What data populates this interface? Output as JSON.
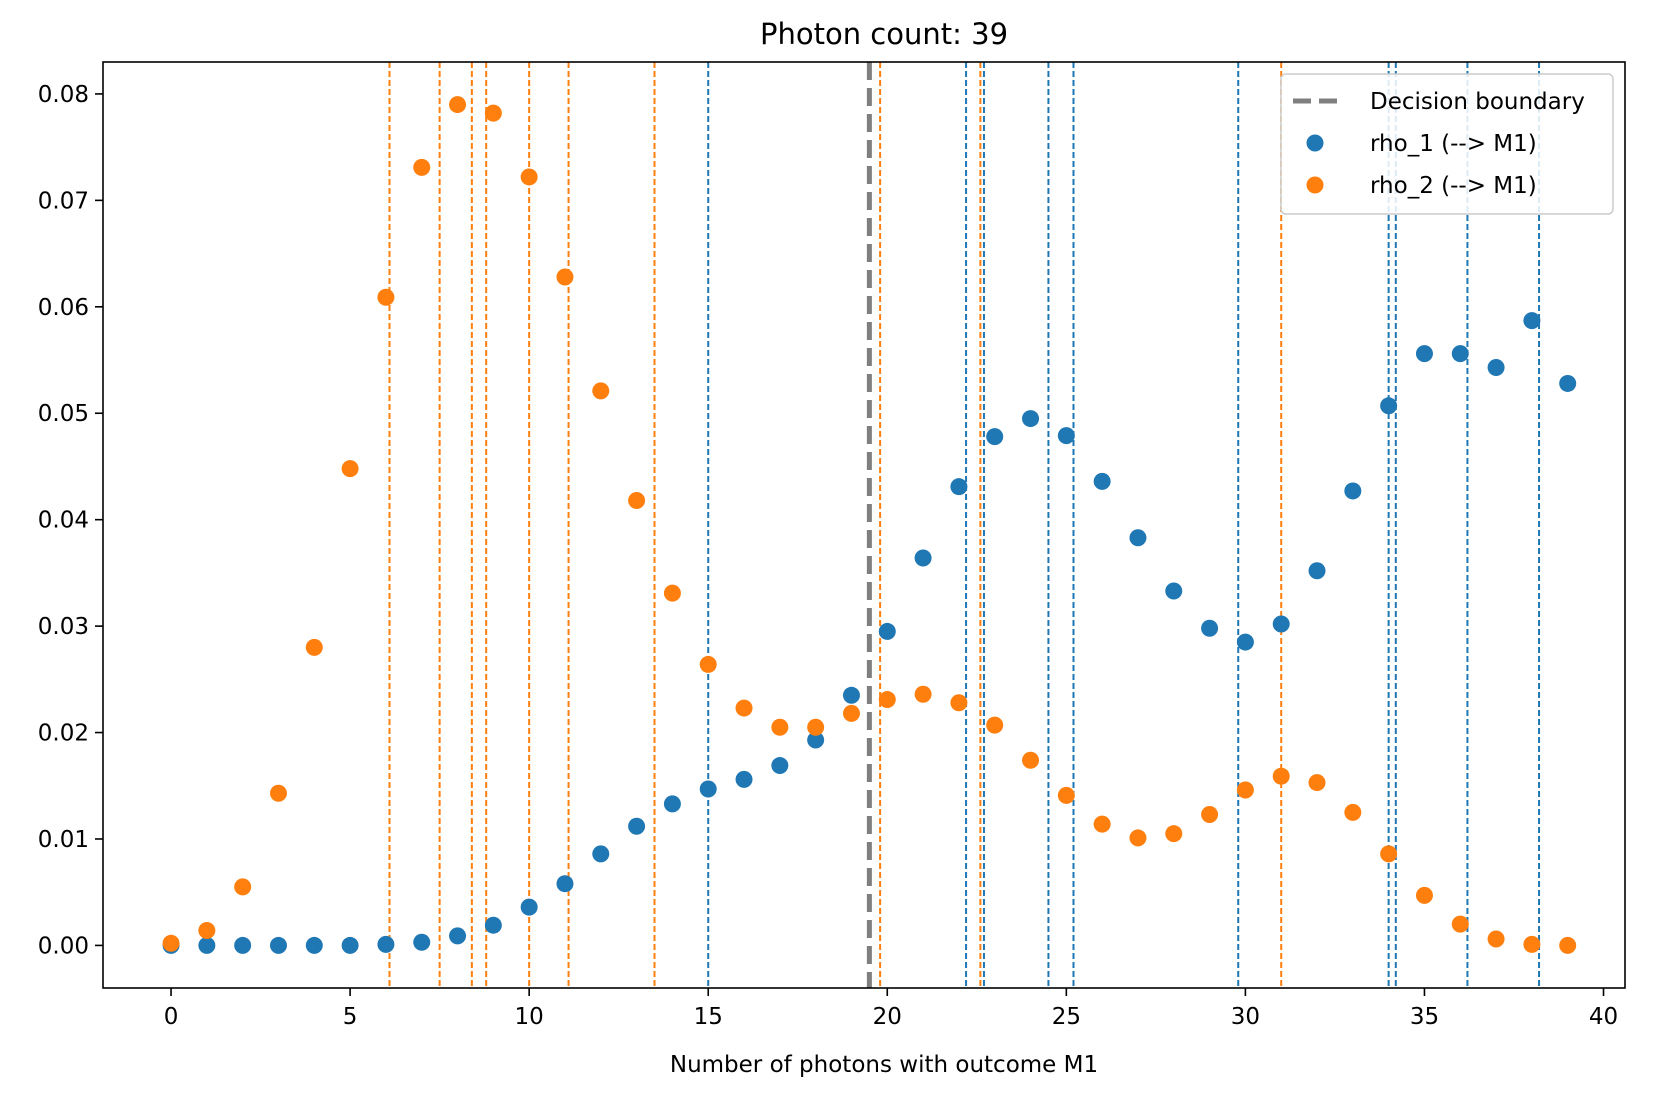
{
  "chart_data": {
    "type": "scatter",
    "title": "Photon count: 39",
    "xlabel": "Number of photons with outcome M1",
    "ylabel": "",
    "xlim": [
      -1.9,
      40.6
    ],
    "ylim": [
      -0.004,
      0.083
    ],
    "xticks": [
      0,
      5,
      10,
      15,
      20,
      25,
      30,
      35,
      40
    ],
    "yticks": [
      0.0,
      0.01,
      0.02,
      0.03,
      0.04,
      0.05,
      0.06,
      0.07,
      0.08
    ],
    "xtick_labels": [
      "0",
      "5",
      "10",
      "15",
      "20",
      "25",
      "30",
      "35",
      "40"
    ],
    "ytick_labels": [
      "0.00",
      "0.01",
      "0.02",
      "0.03",
      "0.04",
      "0.05",
      "0.06",
      "0.07",
      "0.08"
    ],
    "grid": false,
    "legend_position": "top-right",
    "decision_boundary": {
      "name": "Decision boundary",
      "x": 19.5,
      "color": "#7f7f7f"
    },
    "series": [
      {
        "name": "rho_1 (--> M1)",
        "color": "#1f77b4",
        "x": [
          0,
          1,
          2,
          3,
          4,
          5,
          6,
          7,
          8,
          9,
          10,
          11,
          12,
          13,
          14,
          15,
          16,
          17,
          18,
          19,
          20,
          21,
          22,
          23,
          24,
          25,
          26,
          27,
          28,
          29,
          30,
          31,
          32,
          33,
          34,
          35,
          36,
          37,
          38,
          39
        ],
        "values": [
          0.0,
          0.0,
          0.0,
          0.0,
          0.0,
          0.0,
          0.0001,
          0.0003,
          0.0009,
          0.0019,
          0.0036,
          0.0058,
          0.0086,
          0.0112,
          0.0133,
          0.0147,
          0.0156,
          0.0169,
          0.0193,
          0.0235,
          0.0295,
          0.0364,
          0.0431,
          0.0478,
          0.0495,
          0.0479,
          0.0436,
          0.0383,
          0.0333,
          0.0298,
          0.0285,
          0.0302,
          0.0352,
          0.0427,
          0.0507,
          0.0556,
          0.0556,
          0.0543,
          0.0587,
          0.0528
        ],
        "threshold_lines_x": [
          15.0,
          22.2,
          22.7,
          24.5,
          25.2,
          29.8,
          34.0,
          34.2,
          36.2,
          38.2
        ]
      },
      {
        "name": "rho_2 (--> M1)",
        "color": "#ff7f0e",
        "x": [
          0,
          1,
          2,
          3,
          4,
          5,
          6,
          7,
          8,
          9,
          10,
          11,
          12,
          13,
          14,
          15,
          16,
          17,
          18,
          19,
          20,
          21,
          22,
          23,
          24,
          25,
          26,
          27,
          28,
          29,
          30,
          31,
          32,
          33,
          34,
          35,
          36,
          37,
          38,
          39
        ],
        "values": [
          0.0002,
          0.0014,
          0.0055,
          0.0143,
          0.028,
          0.0448,
          0.0609,
          0.0731,
          0.079,
          0.0782,
          0.0722,
          0.0628,
          0.0521,
          0.0418,
          0.0331,
          0.0264,
          0.0223,
          0.0205,
          0.0205,
          0.0218,
          0.0231,
          0.0236,
          0.0228,
          0.0207,
          0.0174,
          0.0141,
          0.0114,
          0.0101,
          0.0105,
          0.0123,
          0.0146,
          0.0159,
          0.0153,
          0.0125,
          0.0086,
          0.0047,
          0.002,
          0.0006,
          0.0001,
          0.0
        ],
        "threshold_lines_x": [
          6.1,
          7.5,
          8.4,
          8.8,
          10.0,
          11.1,
          13.5,
          19.8,
          22.6,
          31.0
        ]
      }
    ]
  }
}
